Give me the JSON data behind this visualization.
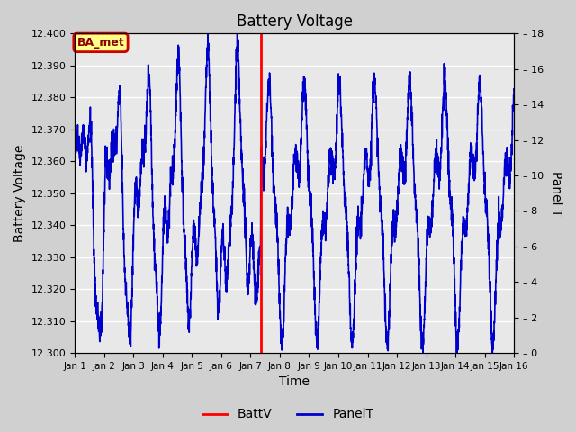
{
  "title": "Battery Voltage",
  "xlabel": "Time",
  "ylabel_left": "Battery Voltage",
  "ylabel_right": "Panel T",
  "ylim_left": [
    12.3,
    12.4
  ],
  "ylim_right": [
    0,
    18
  ],
  "xlim": [
    0,
    15
  ],
  "x_tick_labels": [
    "Jan 1",
    "Jan 2",
    "Jan 3",
    "Jan 4",
    "Jan 5",
    "Jan 6",
    "Jan 7",
    "Jan 8",
    "Jan 9",
    "Jan 10",
    "Jan 11",
    "Jan 12",
    "Jan 13",
    "Jan 14",
    "Jan 15",
    "Jan 16"
  ],
  "x_tick_positions": [
    0,
    1,
    2,
    3,
    4,
    5,
    6,
    7,
    8,
    9,
    10,
    11,
    12,
    13,
    14,
    15
  ],
  "yticks_left": [
    12.3,
    12.31,
    12.32,
    12.33,
    12.34,
    12.35,
    12.36,
    12.37,
    12.38,
    12.39,
    12.4
  ],
  "yticks_right": [
    0,
    2,
    4,
    6,
    8,
    10,
    12,
    14,
    16,
    18
  ],
  "red_hline_y": 12.4,
  "red_vline_x": 6.35,
  "fig_bg_color": "#d0d0d0",
  "plot_bg_color": "#e8e8e8",
  "line_color_blue": "#0000cc",
  "line_color_red": "#ff0000",
  "annotation_text": "BA_met",
  "annotation_bg": "#ffff88",
  "annotation_border": "#cc0000",
  "legend_labels": [
    "BattV",
    "PanelT"
  ],
  "legend_colors": [
    "#ff0000",
    "#0000cc"
  ]
}
